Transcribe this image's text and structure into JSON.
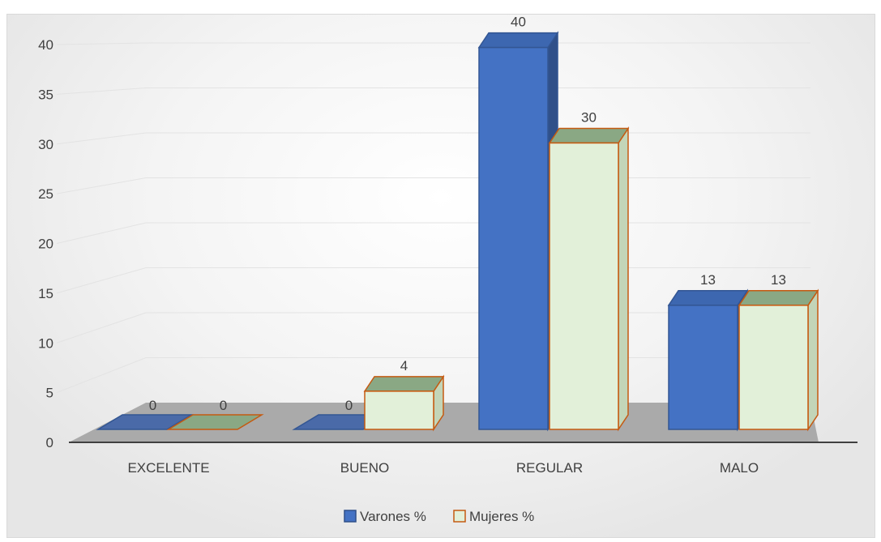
{
  "chart_data": {
    "type": "bar",
    "categories": [
      "EXCELENTE",
      "BUENO",
      "REGULAR",
      "MALO"
    ],
    "series": [
      {
        "name": "Varones %",
        "values": [
          0,
          0,
          40,
          13
        ],
        "color": "#4472c4"
      },
      {
        "name": "Mujeres %",
        "values": [
          0,
          4,
          30,
          13
        ],
        "color": "#e2f0d9",
        "edge": "#c55a11"
      }
    ],
    "ylim": [
      0,
      40
    ],
    "yticks": [
      0,
      5,
      10,
      15,
      20,
      25,
      30,
      35,
      40
    ],
    "grid": true,
    "legend": "bottom",
    "style": "3d-clustered-column"
  }
}
